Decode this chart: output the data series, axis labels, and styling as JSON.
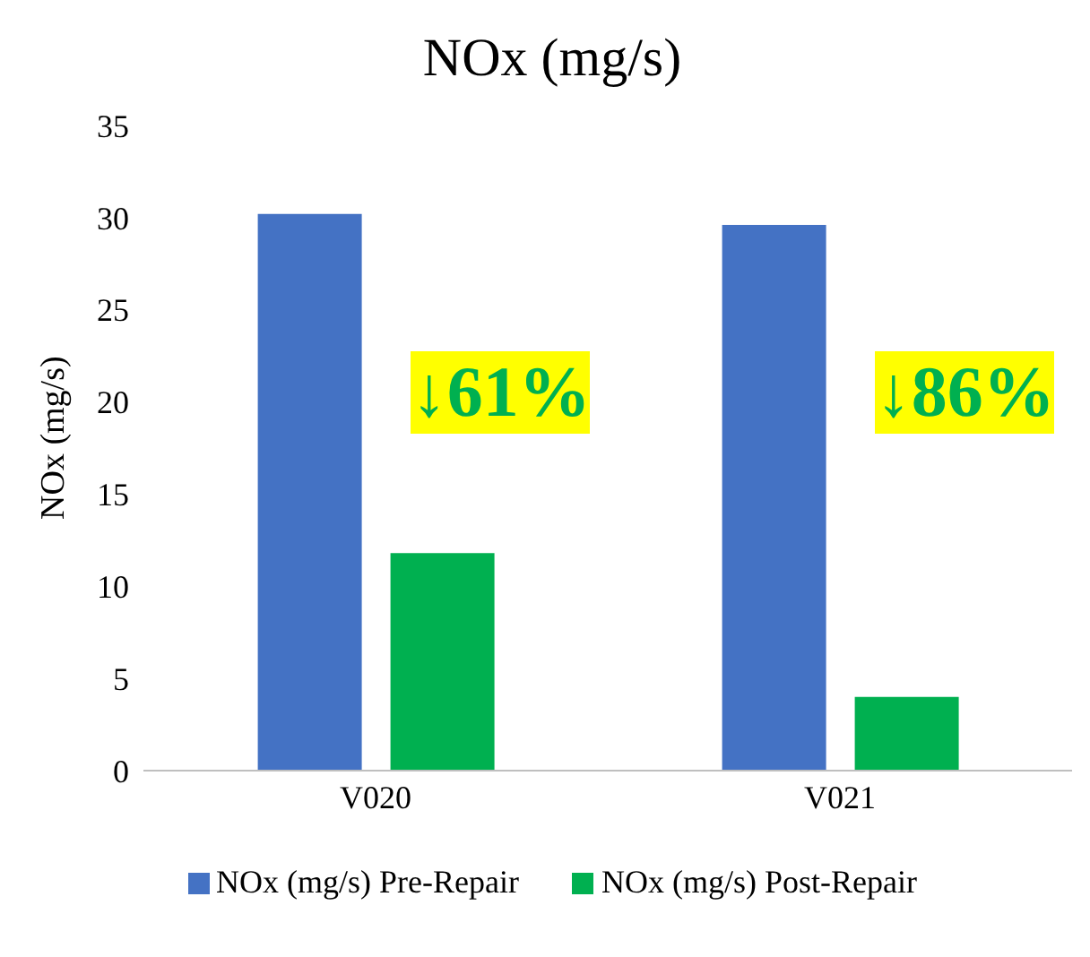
{
  "chart_data": {
    "type": "bar",
    "title": "NOx (mg/s)",
    "ylabel": "NOx (mg/s)",
    "categories": [
      "V020",
      "V021"
    ],
    "series": [
      {
        "name": "NOx (mg/s) Pre-Repair",
        "color": "#4472c4",
        "values": [
          30.2,
          29.6
        ]
      },
      {
        "name": "NOx (mg/s) Post-Repair",
        "color": "#00b050",
        "values": [
          11.8,
          4.0
        ]
      }
    ],
    "ylim": [
      0,
      35
    ],
    "yticks": [
      0,
      5,
      10,
      15,
      20,
      25,
      30,
      35
    ],
    "grid": false,
    "legend": "bottom",
    "annotations": [
      "↓61%",
      "↓86%"
    ]
  }
}
